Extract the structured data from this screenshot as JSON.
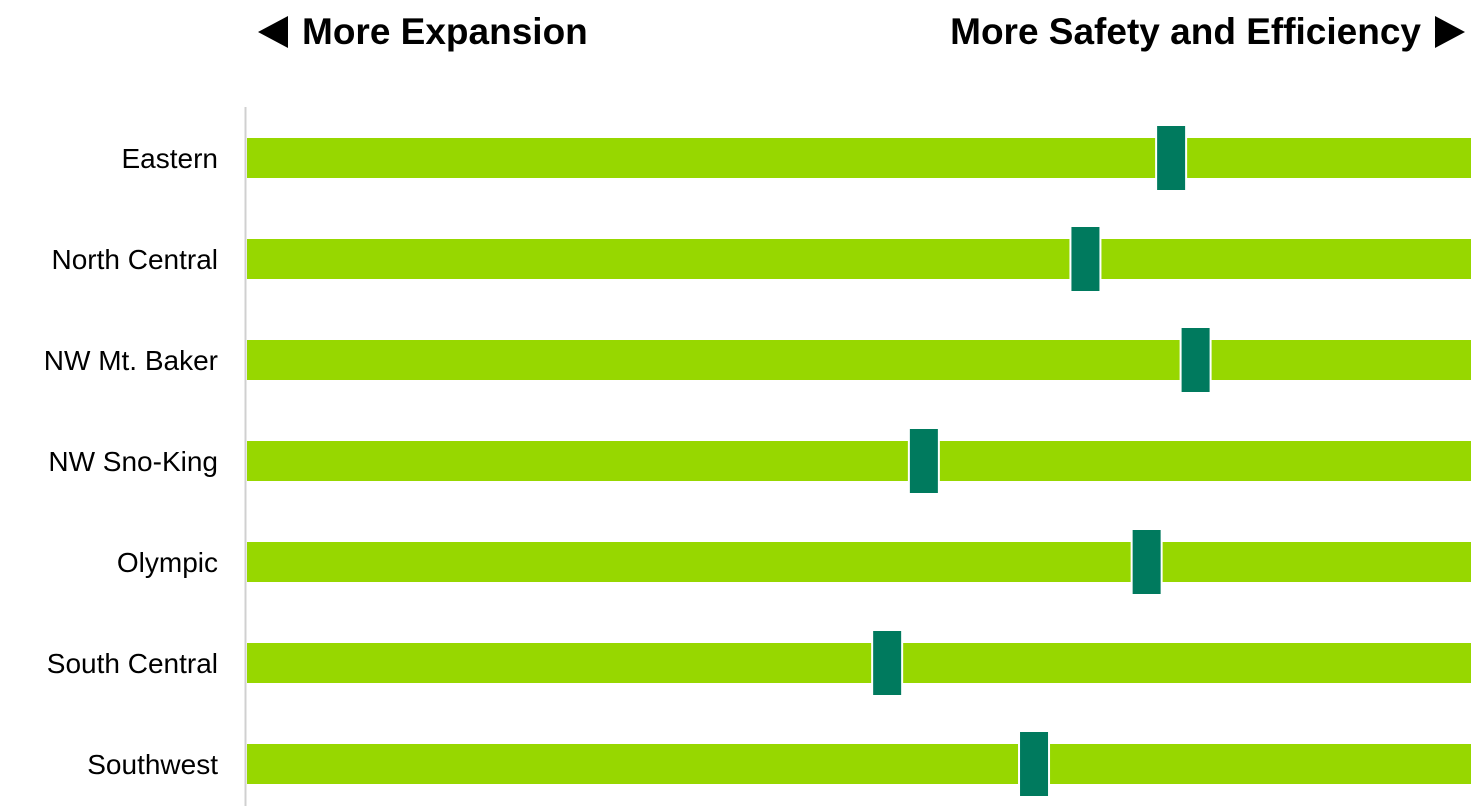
{
  "header": {
    "left_label": "More Expansion",
    "right_label": "More Safety and Efficiency"
  },
  "colors": {
    "track": "#97d700",
    "marker": "#007a5e",
    "marker_border": "#ffffff",
    "axis": "#d0d0d0"
  },
  "chart_data": {
    "type": "bar",
    "categories": [
      "Eastern",
      "North Central",
      "NW Mt. Baker",
      "NW Sno-King",
      "Olympic",
      "South Central",
      "Southwest"
    ],
    "values": [
      0.755,
      0.685,
      0.775,
      0.553,
      0.735,
      0.523,
      0.643
    ],
    "xlim": [
      0,
      1
    ],
    "grid": false,
    "legend": "none"
  }
}
